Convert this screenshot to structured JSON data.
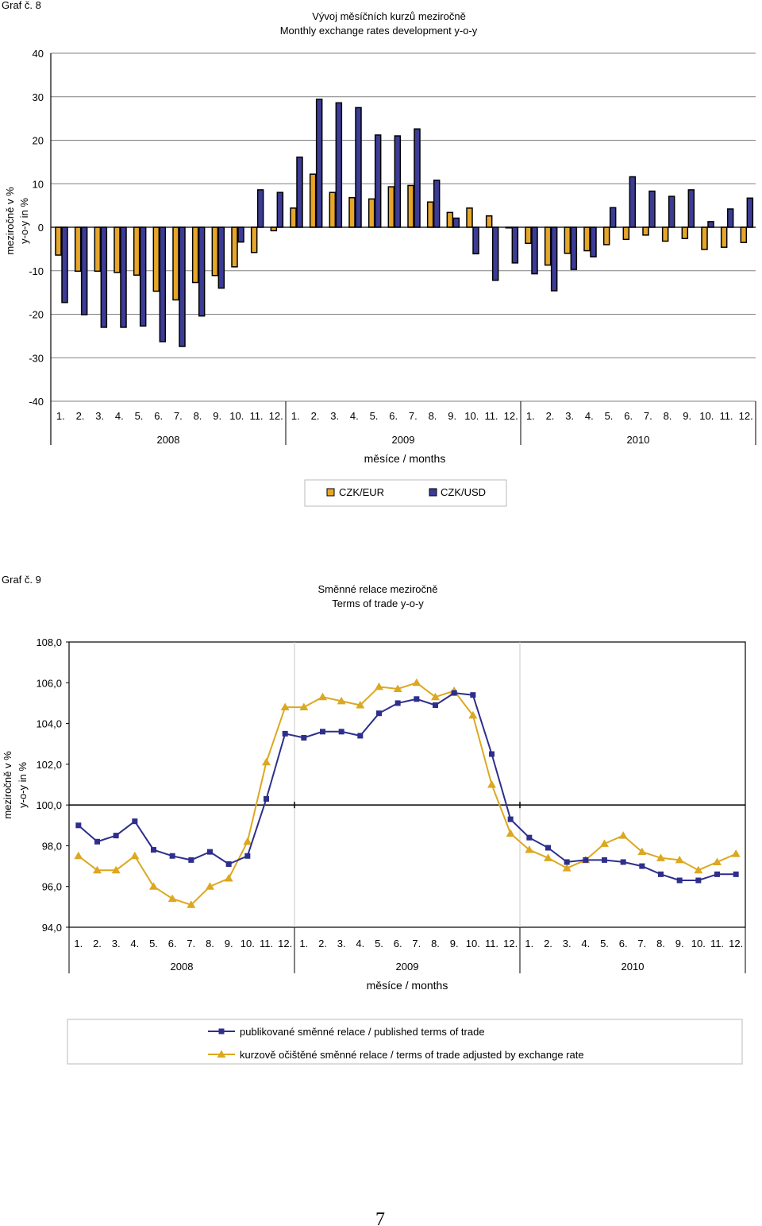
{
  "page_number": "7",
  "chart_data": [
    {
      "type": "bar",
      "label": "Graf č. 8",
      "title": "Vývoj měsíčních kurzů meziročně",
      "subtitle": "Monthly exchange rates development y-o-y",
      "ylabel_line1": "meziročně v %",
      "ylabel_line2": "y-o-y in %",
      "xlabel": "měsíce / months",
      "ylim": [
        -40,
        40
      ],
      "yticks": [
        "40",
        "30",
        "20",
        "10",
        "0",
        "-10",
        "-20",
        "-30",
        "-40"
      ],
      "grid": "horizontal",
      "legend_position": "bottom",
      "categories": [
        "1.",
        "2.",
        "3.",
        "4.",
        "5.",
        "6.",
        "7.",
        "8.",
        "9.",
        "10.",
        "11.",
        "12.",
        "1.",
        "2.",
        "3.",
        "4.",
        "5.",
        "6.",
        "7.",
        "8.",
        "9.",
        "10.",
        "11.",
        "12.",
        "1.",
        "2.",
        "3.",
        "4.",
        "5.",
        "6.",
        "7.",
        "8.",
        "9.",
        "10.",
        "11.",
        "12."
      ],
      "years": [
        "2008",
        "2009",
        "2010"
      ],
      "series": [
        {
          "name": "CZK/EUR",
          "color": "#E6A62A",
          "values": [
            -6.4,
            -10.1,
            -10.1,
            -10.4,
            -11.0,
            -14.7,
            -16.7,
            -12.7,
            -11.1,
            -9.1,
            -5.8,
            -0.8,
            4.4,
            12.2,
            8.0,
            6.8,
            6.5,
            9.3,
            9.6,
            5.8,
            3.4,
            4.4,
            2.6,
            -0.1,
            -3.7,
            -8.7,
            -6.0,
            -5.4,
            -4.0,
            -2.8,
            -1.8,
            -3.2,
            -2.6,
            -5.1,
            -4.6,
            -3.5
          ]
        },
        {
          "name": "CZK/USD",
          "color": "#3C3C96",
          "values": [
            -17.3,
            -20.1,
            -23.0,
            -23.0,
            -22.7,
            -26.3,
            -27.4,
            -20.4,
            -14.0,
            -3.4,
            8.6,
            8.0,
            16.1,
            29.4,
            28.6,
            27.5,
            21.2,
            21.0,
            22.6,
            10.8,
            2.1,
            -6.1,
            -12.2,
            -8.2,
            -10.7,
            -14.6,
            -9.7,
            -6.8,
            4.5,
            11.6,
            8.3,
            7.1,
            8.6,
            1.3,
            4.2,
            6.7
          ]
        }
      ]
    },
    {
      "type": "line",
      "label": "Graf č. 9",
      "title": "Směnné relace meziročně",
      "subtitle": "Terms of trade y-o-y",
      "ylabel_line1": "meziročně v %",
      "ylabel_line2": "y-o-y in %",
      "xlabel": "měsíce / months",
      "ylim": [
        94,
        108
      ],
      "yticks": [
        "108,0",
        "106,0",
        "104,0",
        "102,0",
        "100,0",
        "98,0",
        "96,0",
        "94,0"
      ],
      "grid": "none",
      "legend_position": "bottom",
      "categories": [
        "1.",
        "2.",
        "3.",
        "4.",
        "5.",
        "6.",
        "7.",
        "8.",
        "9.",
        "10.",
        "11.",
        "12.",
        "1.",
        "2.",
        "3.",
        "4.",
        "5.",
        "6.",
        "7.",
        "8.",
        "9.",
        "10.",
        "11.",
        "12.",
        "1.",
        "2.",
        "3.",
        "4.",
        "5.",
        "6.",
        "7.",
        "8.",
        "9.",
        "10.",
        "11.",
        "12."
      ],
      "years": [
        "2008",
        "2009",
        "2010"
      ],
      "series": [
        {
          "name": "publikované směnné relace / published terms of trade",
          "color": "#2E2E8C",
          "marker": "square",
          "values": [
            99.0,
            98.2,
            98.5,
            99.2,
            97.8,
            97.5,
            97.3,
            97.7,
            97.1,
            97.5,
            100.3,
            103.5,
            103.3,
            103.6,
            103.6,
            103.4,
            104.5,
            105.0,
            105.2,
            104.9,
            105.5,
            105.4,
            102.5,
            99.3,
            98.4,
            97.9,
            97.2,
            97.3,
            97.3,
            97.2,
            97.0,
            96.6,
            96.3,
            96.3,
            96.6,
            96.6
          ]
        },
        {
          "name": "kurzově očištěné směnné relace / terms of trade adjusted by exchange rate",
          "color": "#DCA820",
          "marker": "triangle",
          "values": [
            97.5,
            96.8,
            96.8,
            97.5,
            96.0,
            95.4,
            95.1,
            96.0,
            96.4,
            98.2,
            102.1,
            104.8,
            104.8,
            105.3,
            105.1,
            104.9,
            105.8,
            105.7,
            106.0,
            105.3,
            105.6,
            104.4,
            101.0,
            98.6,
            97.8,
            97.4,
            96.9,
            97.3,
            98.1,
            98.5,
            97.7,
            97.4,
            97.3,
            96.8,
            97.2,
            97.6
          ]
        }
      ]
    }
  ]
}
